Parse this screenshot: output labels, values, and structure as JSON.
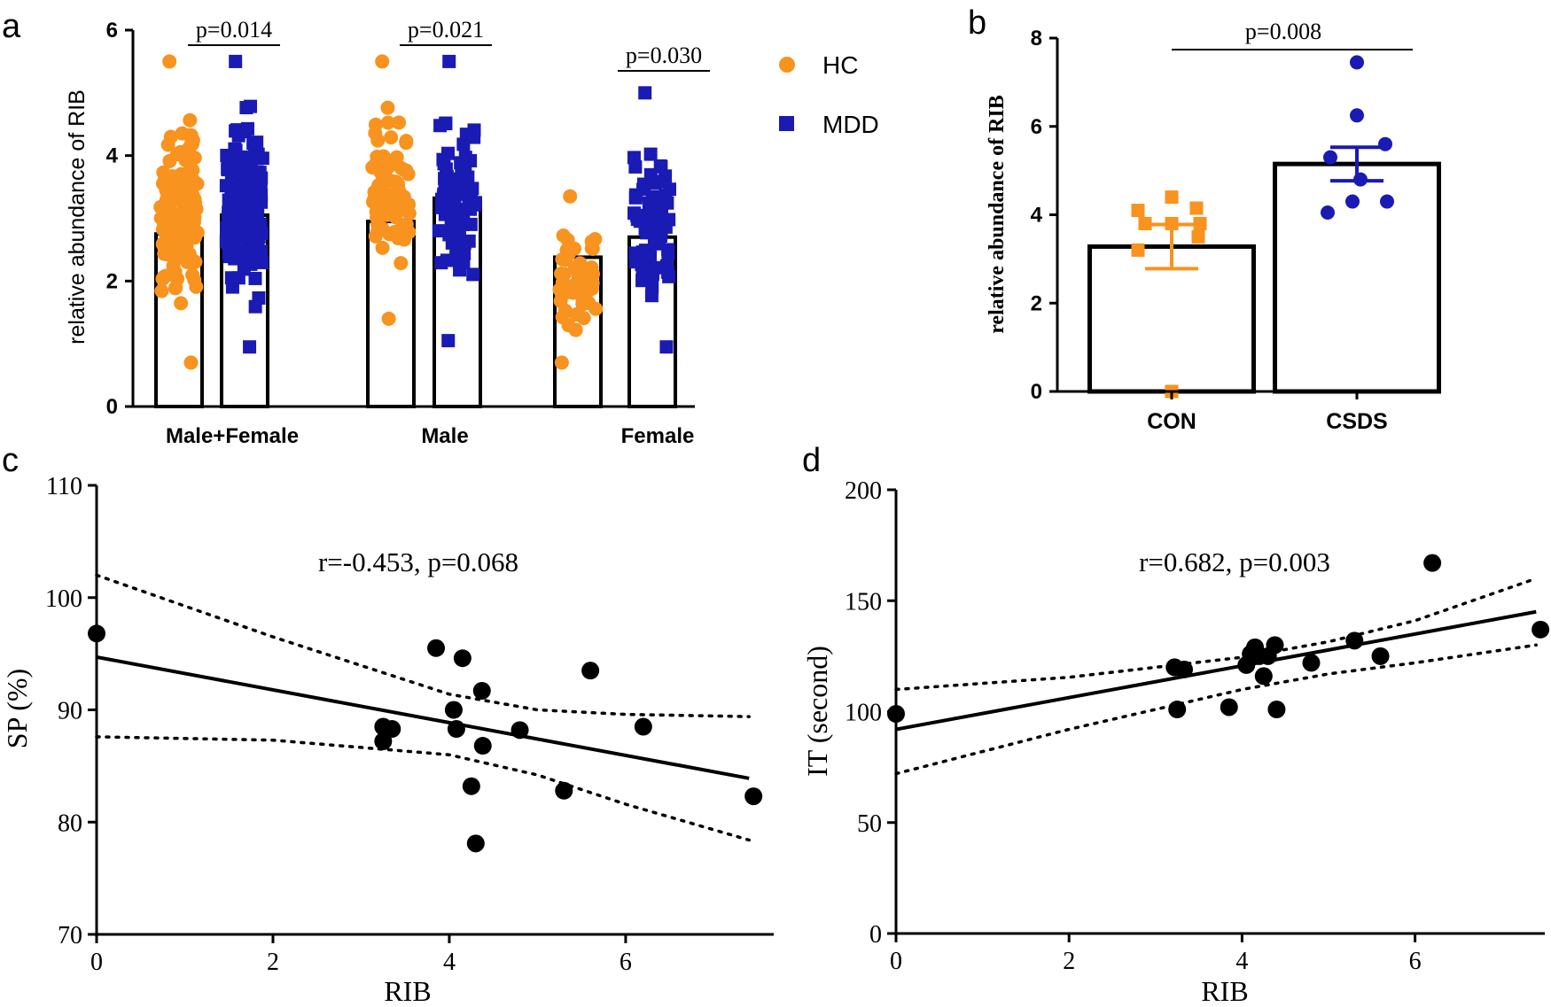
{
  "colors": {
    "hc": "#F7931E",
    "mdd": "#1A1AB4",
    "con": "#F7931E",
    "csds": "#1A1AB4",
    "black": "#000000"
  },
  "chart_data": [
    {
      "panel": "a",
      "type": "bar",
      "ylabel": "relative abundance of RIB",
      "ylim": [
        0,
        6
      ],
      "yticks": [
        "0",
        "2",
        "4",
        "6"
      ],
      "categories": [
        "Male+Female",
        "Male",
        "Female"
      ],
      "legend": [
        {
          "name": "HC",
          "marker": "circle"
        },
        {
          "name": "MDD",
          "marker": "square"
        }
      ],
      "legend_position": "top-right",
      "series": [
        {
          "name": "HC",
          "values": [
            2.75,
            2.95,
            2.38
          ]
        },
        {
          "name": "MDD",
          "values": [
            3.05,
            3.32,
            2.7
          ]
        }
      ],
      "pvalues": [
        "p=0.014",
        "p=0.021",
        "p=0.030"
      ],
      "points": [
        {
          "group": 0,
          "series": 0,
          "min": 0.7,
          "max": 5.5,
          "n": 130
        },
        {
          "group": 0,
          "series": 1,
          "min": 0.95,
          "max": 5.5,
          "n": 150
        },
        {
          "group": 1,
          "series": 0,
          "min": 1.4,
          "max": 5.5,
          "n": 80
        },
        {
          "group": 1,
          "series": 1,
          "min": 1.05,
          "max": 5.5,
          "n": 80
        },
        {
          "group": 2,
          "series": 0,
          "min": 0.7,
          "max": 3.35,
          "n": 50
        },
        {
          "group": 2,
          "series": 1,
          "min": 0.95,
          "max": 5.0,
          "n": 70
        }
      ]
    },
    {
      "panel": "b",
      "type": "bar",
      "ylabel": "relative abundance of RIB",
      "ylim": [
        0,
        8
      ],
      "yticks": [
        "0",
        "2",
        "4",
        "6",
        "8"
      ],
      "categories": [
        "CON",
        "CSDS"
      ],
      "values": [
        3.28,
        5.15
      ],
      "sem": [
        0.5,
        0.38
      ],
      "pvalue": "p=0.008",
      "points": [
        [
          0.0,
          3.2,
          3.5,
          3.8,
          3.8,
          3.8,
          4.1,
          4.15,
          4.4
        ],
        [
          4.05,
          4.3,
          4.3,
          4.8,
          5.3,
          5.6,
          6.25,
          7.45
        ]
      ]
    },
    {
      "panel": "c",
      "type": "scatter",
      "xlabel": "RIB",
      "ylabel": "SP (%)",
      "xlim": [
        0,
        7.8
      ],
      "ylim": [
        70,
        110
      ],
      "xticks": [
        "0",
        "2",
        "4",
        "6"
      ],
      "yticks": [
        "70",
        "80",
        "90",
        "100",
        "110"
      ],
      "annotation": "r=-0.453, p=0.068",
      "x": [
        0,
        3.25,
        3.35,
        3.25,
        3.85,
        4.05,
        4.08,
        4.15,
        4.25,
        4.3,
        4.37,
        4.38,
        4.8,
        5.3,
        5.6,
        6.2,
        7.45
      ],
      "y": [
        96.8,
        88.5,
        88.3,
        87.2,
        95.5,
        90.0,
        88.3,
        94.6,
        83.2,
        78.1,
        91.7,
        86.8,
        88.2,
        82.8,
        93.5,
        88.5,
        82.3
      ],
      "fit": {
        "x0": 0,
        "y0": 94.7,
        "x1": 7.4,
        "y1": 83.9
      },
      "ci_upper": [
        [
          0,
          102
        ],
        [
          2,
          96.5
        ],
        [
          4,
          91.4
        ],
        [
          5,
          90.0
        ],
        [
          6,
          89.6
        ],
        [
          7.4,
          89.4
        ]
      ],
      "ci_lower": [
        [
          0,
          87.6
        ],
        [
          2,
          87.3
        ],
        [
          4,
          86.0
        ],
        [
          5,
          84.2
        ],
        [
          6,
          81.6
        ],
        [
          7.4,
          78.4
        ]
      ]
    },
    {
      "panel": "d",
      "type": "scatter",
      "xlabel": "RIB",
      "ylabel": "IT (second)",
      "xlim": [
        0,
        7.5
      ],
      "ylim": [
        0,
        200
      ],
      "xticks": [
        "0",
        "2",
        "4",
        "6"
      ],
      "yticks": [
        "0",
        "50",
        "100",
        "150",
        "200"
      ],
      "annotation": "r=0.682, p=0.003",
      "x": [
        0,
        3.22,
        3.25,
        3.33,
        3.85,
        4.05,
        4.1,
        4.15,
        4.2,
        4.25,
        4.3,
        4.38,
        4.4,
        4.8,
        5.3,
        5.6,
        6.2,
        7.45
      ],
      "y": [
        99,
        120,
        101,
        119,
        102,
        121,
        126,
        129,
        125,
        116,
        125,
        130,
        101,
        122,
        132,
        125,
        167,
        137
      ],
      "fit": {
        "x0": 0,
        "y0": 92,
        "x1": 7.4,
        "y1": 145
      },
      "ci_upper": [
        [
          0,
          110
        ],
        [
          2,
          115.5
        ],
        [
          4,
          124.5
        ],
        [
          5,
          131.5
        ],
        [
          6,
          141
        ],
        [
          7.4,
          160
        ]
      ],
      "ci_lower": [
        [
          0,
          72
        ],
        [
          2,
          92
        ],
        [
          4,
          110
        ],
        [
          5,
          117
        ],
        [
          6,
          122
        ],
        [
          7.4,
          130
        ]
      ]
    }
  ],
  "panel_labels": {
    "a": "a",
    "b": "b",
    "c": "c",
    "d": "d"
  }
}
